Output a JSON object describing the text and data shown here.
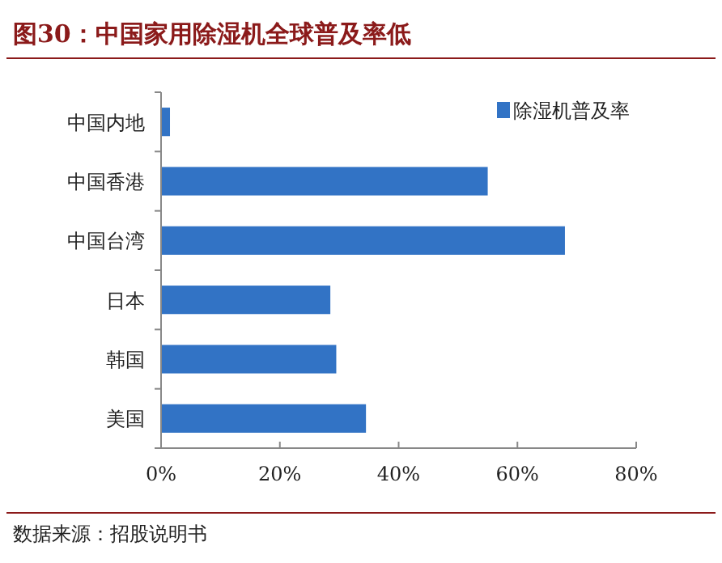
{
  "chart_data": {
    "type": "bar",
    "orientation": "horizontal",
    "title": "图30：中国家用除湿机全球普及率低",
    "categories": [
      "中国内地",
      "中国香港",
      "中国台湾",
      "日本",
      "韩国",
      "美国"
    ],
    "series": [
      {
        "name": "除湿机普及率",
        "color": "#3273c5",
        "values": [
          1.5,
          55,
          68,
          28.5,
          29.5,
          34.5
        ]
      }
    ],
    "xlim": [
      0,
      80
    ],
    "xticks": [
      {
        "value": 0,
        "label": "0%"
      },
      {
        "value": 20,
        "label": "20%"
      },
      {
        "value": 40,
        "label": "40%"
      },
      {
        "value": 60,
        "label": "60%"
      },
      {
        "value": 80,
        "label": "80%"
      }
    ],
    "grid": false,
    "legend": "top right",
    "annotations": [
      "数据来源：招股说明书"
    ]
  }
}
